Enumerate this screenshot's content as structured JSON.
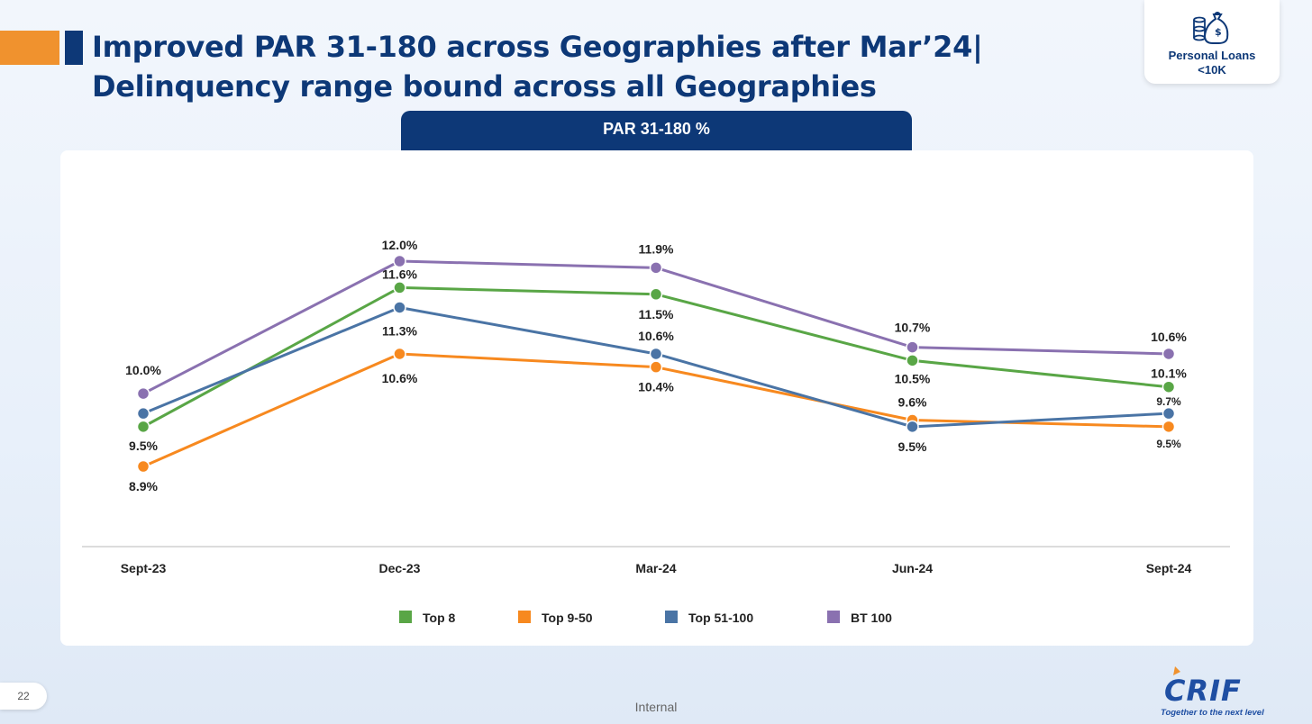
{
  "slide": {
    "title_line1": "Improved PAR 31-180 across Geographies after Mar’24|",
    "title_line2": "Delinquency range bound across all Geographies",
    "badge_label": "Personal Loans\n<10K",
    "badge_icon": "money-bag-coins-icon",
    "chart_header": "PAR 31-180 %",
    "page_number": "22",
    "footer_label": "Internal",
    "logo_text": "CRIF",
    "logo_tagline": "Together to the next level",
    "colors": {
      "navy": "#0d3877",
      "orange_accent": "#f0922e"
    }
  },
  "chart_data": {
    "type": "line",
    "title": "",
    "xlabel": "",
    "ylabel": "",
    "categories": [
      "Sept-23",
      "Dec-23",
      "Mar-24",
      "Jun-24",
      "Sept-24"
    ],
    "series": [
      {
        "name": "Top 8",
        "color": "#59a646",
        "values": [
          9.5,
          11.6,
          11.5,
          10.5,
          10.1
        ],
        "labels": [
          "9.5%",
          "11.6%",
          "11.5%",
          "10.5%",
          "10.1%"
        ]
      },
      {
        "name": "Top 9-50",
        "color": "#f7891f",
        "values": [
          8.9,
          10.6,
          10.4,
          9.6,
          9.5
        ],
        "labels": [
          "8.9%",
          "10.6%",
          "10.4%",
          "9.6%",
          "9.5%"
        ]
      },
      {
        "name": "Top 51-100",
        "color": "#4a74a5",
        "values": [
          9.7,
          11.3,
          10.6,
          9.5,
          9.7
        ],
        "labels": [
          "",
          "11.3%",
          "10.6%",
          "9.5%",
          "9.7%"
        ]
      },
      {
        "name": "BT 100",
        "color": "#8a71b0",
        "values": [
          10.0,
          12.0,
          11.9,
          10.7,
          10.6
        ],
        "labels": [
          "10.0%",
          "12.0%",
          "11.9%",
          "10.7%",
          "10.6%"
        ]
      }
    ],
    "legend_position": "bottom",
    "grid": false
  }
}
